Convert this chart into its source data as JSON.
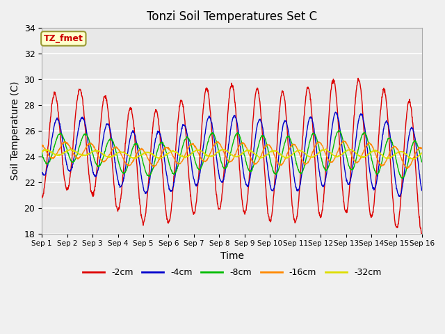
{
  "title": "Tonzi Soil Temperatures Set C",
  "xlabel": "Time",
  "ylabel": "Soil Temperature (C)",
  "ylim": [
    18,
    34
  ],
  "yticks": [
    18,
    20,
    22,
    24,
    26,
    28,
    30,
    32,
    34
  ],
  "colors": {
    "-2cm": "#dd0000",
    "-4cm": "#0000cc",
    "-8cm": "#00bb00",
    "-16cm": "#ff8800",
    "-32cm": "#dddd00"
  },
  "legend_label": "TZ_fmet",
  "legend_box_bg": "#ffffcc",
  "legend_box_border": "#999933",
  "background_color": "#e8e8e8",
  "grid_color": "#ffffff",
  "depths": [
    "-2cm",
    "-4cm",
    "-8cm",
    "-16cm",
    "-32cm"
  ],
  "n_days": 15,
  "base_temp": 24.2,
  "points_per_day": 96,
  "depth_params": [
    {
      "amp": 5.2,
      "phase_lag": 0.0,
      "slow_amp": 1.8,
      "slow_phase": 0.0,
      "flat": false
    },
    {
      "amp": 2.8,
      "phase_lag": 0.1,
      "slow_amp": 1.2,
      "slow_phase": 0.1,
      "flat": false
    },
    {
      "amp": 1.5,
      "phase_lag": 0.22,
      "slow_amp": 0.8,
      "slow_phase": 0.2,
      "flat": false
    },
    {
      "amp": 0.8,
      "phase_lag": 0.42,
      "slow_amp": 0.5,
      "slow_phase": 0.3,
      "flat": false
    },
    {
      "amp": 0.28,
      "phase_lag": 0.65,
      "slow_amp": 0.18,
      "slow_phase": 0.4,
      "flat": false
    }
  ]
}
